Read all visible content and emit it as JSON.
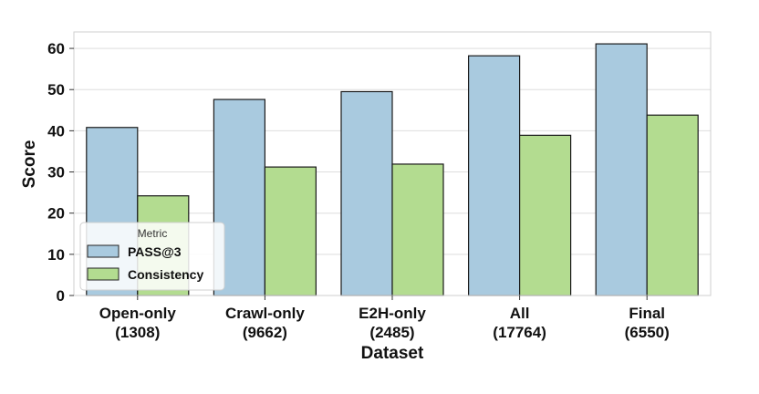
{
  "chart_data": {
    "type": "bar",
    "categories": [
      "Open-only\n(1308)",
      "Crawl-only\n(9662)",
      "E2H-only\n(2485)",
      "All\n(17764)",
      "Final\n(6550)"
    ],
    "series": [
      {
        "name": "PASS@3",
        "values": [
          40.8,
          47.6,
          49.5,
          58.2,
          61.1
        ],
        "color": "#a9cadf"
      },
      {
        "name": "Consistency",
        "values": [
          24.2,
          31.2,
          31.9,
          38.9,
          43.8
        ],
        "color": "#b3dc90"
      }
    ],
    "title": "",
    "xlabel": "Dataset",
    "ylabel": "Score",
    "ylim": [
      0,
      64
    ],
    "yticks": [
      0,
      10,
      20,
      30,
      40,
      50,
      60
    ],
    "grid": true,
    "legend": {
      "title": "Metric",
      "placement": "lower-left"
    }
  }
}
